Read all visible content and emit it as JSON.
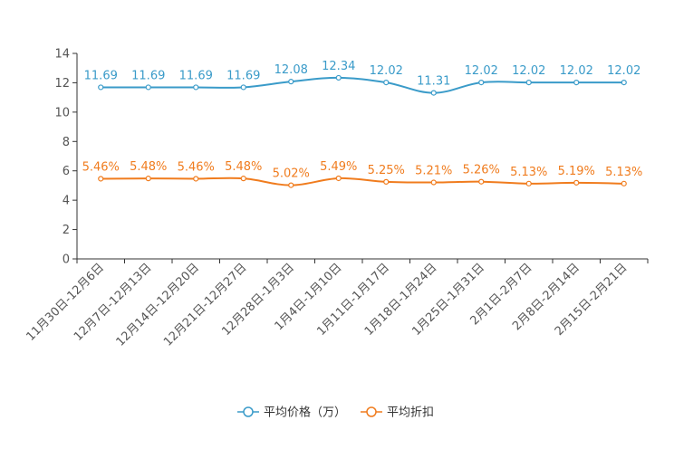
{
  "chart_data": {
    "type": "line",
    "title": "",
    "xlabel": "",
    "ylabel": "",
    "ylim": [
      0,
      14
    ],
    "yticks": [
      0,
      2,
      4,
      6,
      8,
      10,
      12,
      14
    ],
    "grid": false,
    "legend_position": "bottom",
    "categories": [
      "11月30日-12月6日",
      "12月7日-12月13日",
      "12月14日-12月20日",
      "12月21日-12月27日",
      "12月28日-1月3日",
      "1月4日-1月10日",
      "1月11日-1月17日",
      "1月18日-1月24日",
      "1月25日-1月31日",
      "2月1日-2月7日",
      "2月8日-2月14日",
      "2月15日-2月21日"
    ],
    "series": [
      {
        "name": "平均价格（万）",
        "color": "#3a9bc9",
        "values": [
          11.69,
          11.69,
          11.69,
          11.69,
          12.08,
          12.34,
          12.02,
          11.31,
          12.02,
          12.02,
          12.02,
          12.02
        ],
        "labels": [
          "11.69",
          "11.69",
          "11.69",
          "11.69",
          "12.08",
          "12.34",
          "12.02",
          "11.31",
          "12.02",
          "12.02",
          "12.02",
          "12.02"
        ]
      },
      {
        "name": "平均折扣",
        "color": "#f07c1e",
        "values": [
          5.46,
          5.48,
          5.46,
          5.48,
          5.02,
          5.49,
          5.25,
          5.21,
          5.26,
          5.13,
          5.19,
          5.13
        ],
        "labels": [
          "5.46%",
          "5.48%",
          "5.46%",
          "5.48%",
          "5.02%",
          "5.49%",
          "5.25%",
          "5.21%",
          "5.26%",
          "5.13%",
          "5.19%",
          "5.13%"
        ]
      }
    ]
  }
}
